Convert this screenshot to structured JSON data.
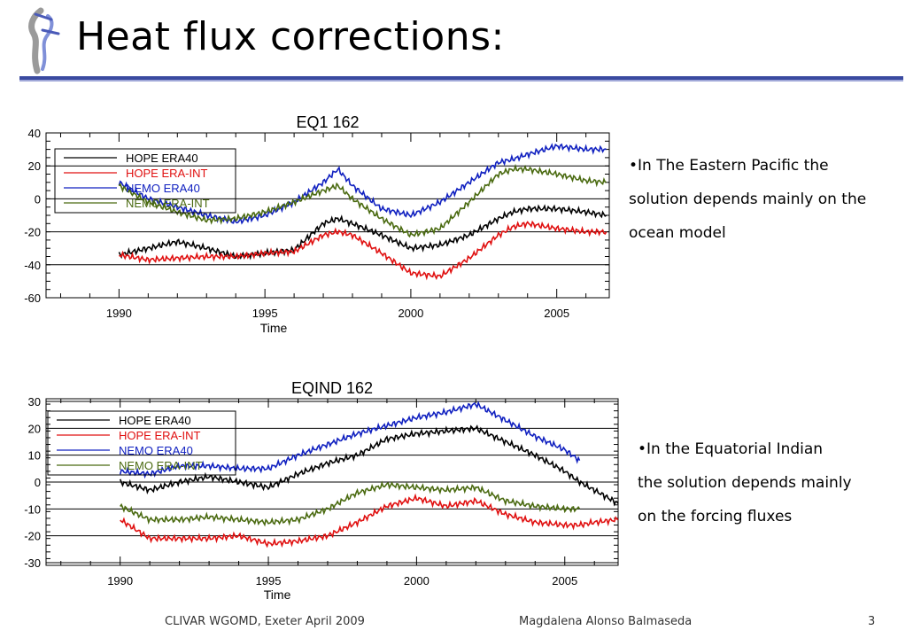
{
  "slide": {
    "title": "Heat flux corrections:",
    "footer_left": "CLIVAR  WGOMD, Exeter April 2009",
    "footer_center": "Magdalena Alonso Balmaseda",
    "page_number": "3",
    "bullets": [
      {
        "lines": [
          "•In The Eastern Pacific the",
          "solution depends mainly on the",
          "ocean model"
        ]
      },
      {
        "lines": [
          "•In the Equatorial Indian",
          "the solution depends mainly",
          "on the forcing fluxes"
        ]
      }
    ]
  },
  "colors": {
    "hope_era40": "#000000",
    "hope_era_int": "#e01010",
    "nemo_era40": "#1020c0",
    "nemo_era_int": "#4a6a10",
    "rule": "#3a4aa0"
  },
  "chart_data": [
    {
      "type": "line",
      "title": "EQ1 162",
      "xlabel": "Time",
      "ylabel": "",
      "xlim": [
        1987.5,
        2006.8
      ],
      "ylim": [
        -60,
        40
      ],
      "xticks": [
        1990,
        1995,
        2000,
        2005
      ],
      "yticks": [
        40,
        20,
        0,
        -20,
        -40,
        -60
      ],
      "grid": true,
      "legend": "top-left",
      "x": [
        1990,
        1991,
        1992,
        1993,
        1994,
        1995,
        1996,
        1997,
        1997.5,
        1998,
        1999,
        2000,
        2001,
        2002,
        2003,
        2003.5,
        2004,
        2005,
        2006,
        2006.7
      ],
      "series": [
        {
          "name": "HOPE ERA40",
          "values": [
            -34,
            -30,
            -26,
            -30,
            -35,
            -33,
            -31,
            -15,
            -12,
            -15,
            -22,
            -30,
            -28,
            -22,
            -12,
            -8,
            -6,
            -6,
            -8,
            -10
          ]
        },
        {
          "name": "HOPE ERA-INT",
          "values": [
            -34,
            -37,
            -36,
            -35,
            -35,
            -33,
            -32,
            -22,
            -20,
            -22,
            -33,
            -45,
            -47,
            -36,
            -22,
            -17,
            -15,
            -18,
            -20,
            -20
          ]
        },
        {
          "name": "NEMO ERA40",
          "values": [
            10,
            0,
            -5,
            -10,
            -14,
            -10,
            -2,
            10,
            18,
            8,
            -6,
            -10,
            -2,
            10,
            22,
            24,
            27,
            32,
            30,
            30
          ]
        },
        {
          "name": "NEMO ERA-INT",
          "values": [
            8,
            -2,
            -8,
            -13,
            -12,
            -8,
            -2,
            5,
            8,
            0,
            -12,
            -22,
            -18,
            -2,
            15,
            18,
            18,
            15,
            11,
            10
          ]
        }
      ]
    },
    {
      "type": "line",
      "title": "EQIND 162",
      "xlabel": "Time",
      "ylabel": "",
      "xlim": [
        1987.5,
        2006.8
      ],
      "ylim": [
        -31,
        31
      ],
      "xticks": [
        1990,
        1995,
        2000,
        2005
      ],
      "yticks": [
        30,
        20,
        10,
        0,
        -10,
        -20,
        -30
      ],
      "grid": true,
      "legend": "top-left",
      "x": [
        1990,
        1991,
        1992,
        1993,
        1994,
        1995,
        1996,
        1997,
        1998,
        1999,
        2000,
        2001,
        2002,
        2003,
        2004,
        2005,
        2005.5,
        2006,
        2006.8
      ],
      "series": [
        {
          "name": "HOPE ERA40",
          "values": [
            0,
            -3,
            0,
            2,
            0,
            -2,
            3,
            7,
            10,
            16,
            18,
            19,
            20,
            15,
            10,
            4,
            0,
            -3,
            -8
          ]
        },
        {
          "name": "HOPE ERA-INT",
          "values": [
            -14,
            -21,
            -21,
            -21,
            -20,
            -23,
            -22,
            -20,
            -15,
            -9,
            -6,
            -9,
            -7,
            -12,
            -15,
            -16,
            -16,
            -15,
            -14
          ]
        },
        {
          "name": "NEMO ERA40",
          "values": [
            4,
            3,
            6,
            6,
            5,
            5,
            10,
            14,
            18,
            21,
            24,
            26,
            29,
            23,
            17,
            12,
            8,
            null,
            null
          ]
        },
        {
          "name": "NEMO ERA-INT",
          "values": [
            -9,
            -14,
            -14,
            -13,
            -14,
            -15,
            -14,
            -10,
            -4,
            -1,
            -2,
            -3,
            -2,
            -7,
            -9,
            -10,
            -10,
            null,
            null
          ]
        }
      ]
    }
  ]
}
